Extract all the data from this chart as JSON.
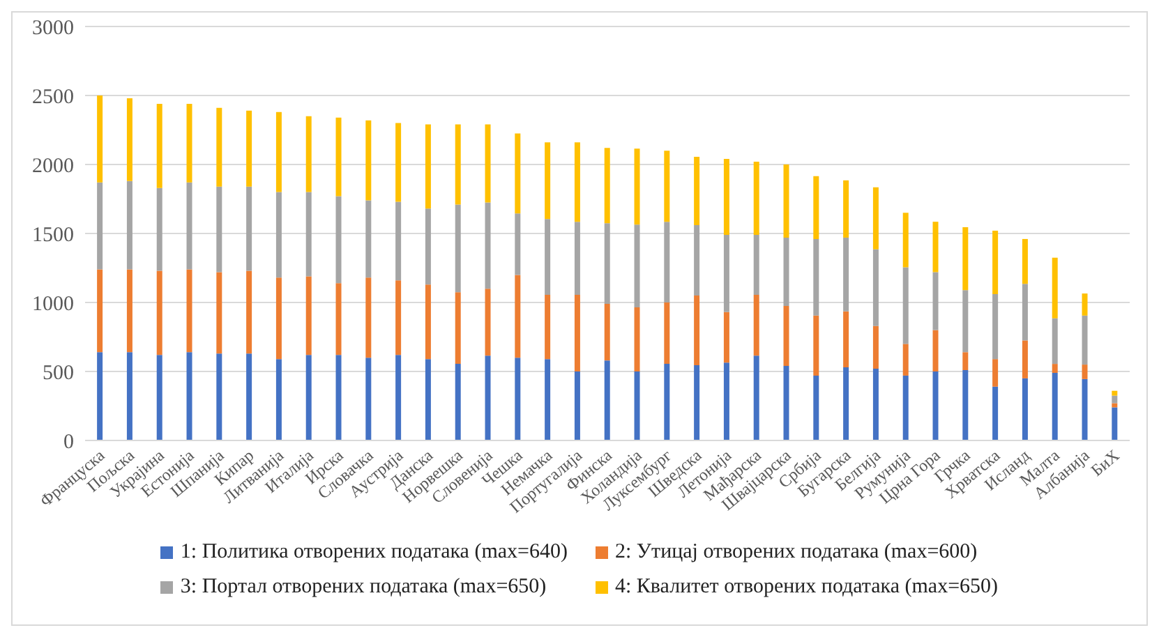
{
  "chart_data": {
    "type": "bar",
    "stacked": true,
    "categories": [
      "Француска",
      "Пољска",
      "Украјина",
      "Естонија",
      "Шпанија",
      "Кипар",
      "Литванија",
      "Италија",
      "Ирска",
      "Словачка",
      "Аустрија",
      "Данска",
      "Норвешка",
      "Словенија",
      "Чешка",
      "Немачка",
      "Португалија",
      "Финска",
      "Холандија",
      "Луксембург",
      "Шведска",
      "Летонија",
      "Мађарска",
      "Швајцарска",
      "Србија",
      "Бугарска",
      "Белгија",
      "Румунија",
      "Црна Гора",
      "Грчка",
      "Хрватска",
      "Исланд",
      "Малта",
      "Албанија",
      "БиХ"
    ],
    "series": [
      {
        "name": "1: Политика отворених података (max=640)",
        "color": "#4472c4",
        "values": [
          640,
          640,
          620,
          640,
          630,
          630,
          590,
          620,
          620,
          600,
          620,
          590,
          555,
          615,
          600,
          590,
          500,
          580,
          500,
          555,
          545,
          565,
          615,
          540,
          470,
          530,
          520,
          470,
          500,
          510,
          390,
          450,
          490,
          445,
          240
        ]
      },
      {
        "name": "2: Утицај отворених података (max=600)",
        "color": "#ed7d31",
        "values": [
          600,
          600,
          610,
          600,
          590,
          600,
          590,
          570,
          520,
          580,
          540,
          540,
          520,
          485,
          600,
          465,
          555,
          410,
          465,
          445,
          505,
          365,
          440,
          435,
          435,
          405,
          310,
          230,
          300,
          130,
          200,
          275,
          65,
          105,
          30
        ]
      },
      {
        "name": "3: Портал отворених података (max=650)",
        "color": "#a5a5a5",
        "values": [
          630,
          640,
          600,
          630,
          620,
          610,
          620,
          610,
          630,
          560,
          570,
          550,
          635,
          625,
          445,
          550,
          530,
          585,
          600,
          585,
          510,
          560,
          435,
          495,
          555,
          535,
          555,
          555,
          420,
          450,
          470,
          410,
          330,
          355,
          55
        ]
      },
      {
        "name": "4: Квалитет отворених података (max=650)",
        "color": "#ffc000",
        "values": [
          630,
          600,
          610,
          570,
          570,
          550,
          580,
          550,
          570,
          580,
          570,
          610,
          580,
          565,
          580,
          555,
          575,
          545,
          550,
          515,
          495,
          550,
          530,
          530,
          455,
          415,
          450,
          395,
          365,
          455,
          460,
          325,
          440,
          160,
          35
        ]
      }
    ],
    "ylim": [
      0,
      3000
    ],
    "yticks": [
      0,
      500,
      1000,
      1500,
      2000,
      2500,
      3000
    ],
    "grid": "y",
    "legend": "bottom"
  }
}
